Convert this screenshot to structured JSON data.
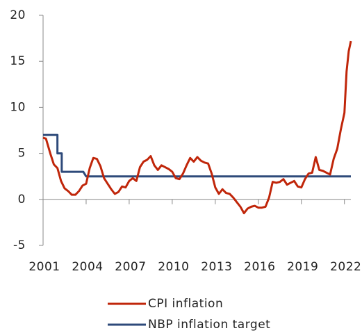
{
  "chart_data": {
    "type": "line",
    "series": [
      {
        "name": "CPI inflation",
        "color": "#c0260a",
        "x": [
          2001,
          2001.2,
          2001.5,
          2001.75,
          2002,
          2002.25,
          2002.5,
          2002.75,
          2003,
          2003.25,
          2003.5,
          2003.75,
          2004,
          2004.25,
          2004.5,
          2004.75,
          2005,
          2005.25,
          2005.5,
          2005.75,
          2006,
          2006.25,
          2006.5,
          2006.75,
          2007,
          2007.25,
          2007.5,
          2007.75,
          2008,
          2008.25,
          2008.5,
          2008.75,
          2009,
          2009.25,
          2009.5,
          2009.75,
          2010,
          2010.25,
          2010.5,
          2010.75,
          2011,
          2011.25,
          2011.5,
          2011.75,
          2012,
          2012.25,
          2012.5,
          2012.75,
          2013,
          2013.25,
          2013.5,
          2013.75,
          2014,
          2014.25,
          2014.5,
          2014.75,
          2015,
          2015.25,
          2015.5,
          2015.75,
          2016,
          2016.25,
          2016.5,
          2016.75,
          2017,
          2017.25,
          2017.5,
          2017.75,
          2018,
          2018.25,
          2018.5,
          2018.75,
          2019,
          2019.25,
          2019.5,
          2019.75,
          2020,
          2020.25,
          2020.5,
          2020.75,
          2021,
          2021.25,
          2021.5,
          2021.75,
          2022,
          2022.15,
          2022.3,
          2022.45
        ],
        "values": [
          6.7,
          6.6,
          5.0,
          3.8,
          3.4,
          2.0,
          1.2,
          0.9,
          0.5,
          0.5,
          0.9,
          1.5,
          1.7,
          3.4,
          4.5,
          4.4,
          3.6,
          2.3,
          1.7,
          1.1,
          0.6,
          0.8,
          1.4,
          1.3,
          2.0,
          2.3,
          2.0,
          3.5,
          4.1,
          4.3,
          4.7,
          3.7,
          3.2,
          3.7,
          3.5,
          3.3,
          3.0,
          2.3,
          2.2,
          2.8,
          3.7,
          4.5,
          4.1,
          4.6,
          4.2,
          4.0,
          3.9,
          2.8,
          1.3,
          0.6,
          1.1,
          0.7,
          0.6,
          0.2,
          -0.3,
          -0.8,
          -1.5,
          -1.0,
          -0.8,
          -0.7,
          -0.9,
          -0.9,
          -0.8,
          0.2,
          1.9,
          1.8,
          1.9,
          2.2,
          1.6,
          1.8,
          2.0,
          1.4,
          1.3,
          2.2,
          2.8,
          2.9,
          4.6,
          3.2,
          3.1,
          2.9,
          2.7,
          4.4,
          5.5,
          7.6,
          9.4,
          13.9,
          16.1,
          17.2
        ]
      },
      {
        "name": "NBP inflation target",
        "color": "#2e4a7a",
        "x": [
          2001,
          2002,
          2002,
          2002.3,
          2002.3,
          2003.8,
          2004,
          2022.45
        ],
        "values": [
          7,
          7,
          5,
          5,
          3,
          3,
          2.5,
          2.5
        ]
      }
    ],
    "xlim": [
      2001,
      2022.45
    ],
    "xticks": [
      2001,
      2004,
      2007,
      2010,
      2013,
      2016,
      2019,
      2022
    ],
    "ylim": [
      -5,
      20
    ],
    "yticks": [
      -5,
      0,
      5,
      10,
      15,
      20
    ],
    "grid": false,
    "legend": "bottom"
  }
}
